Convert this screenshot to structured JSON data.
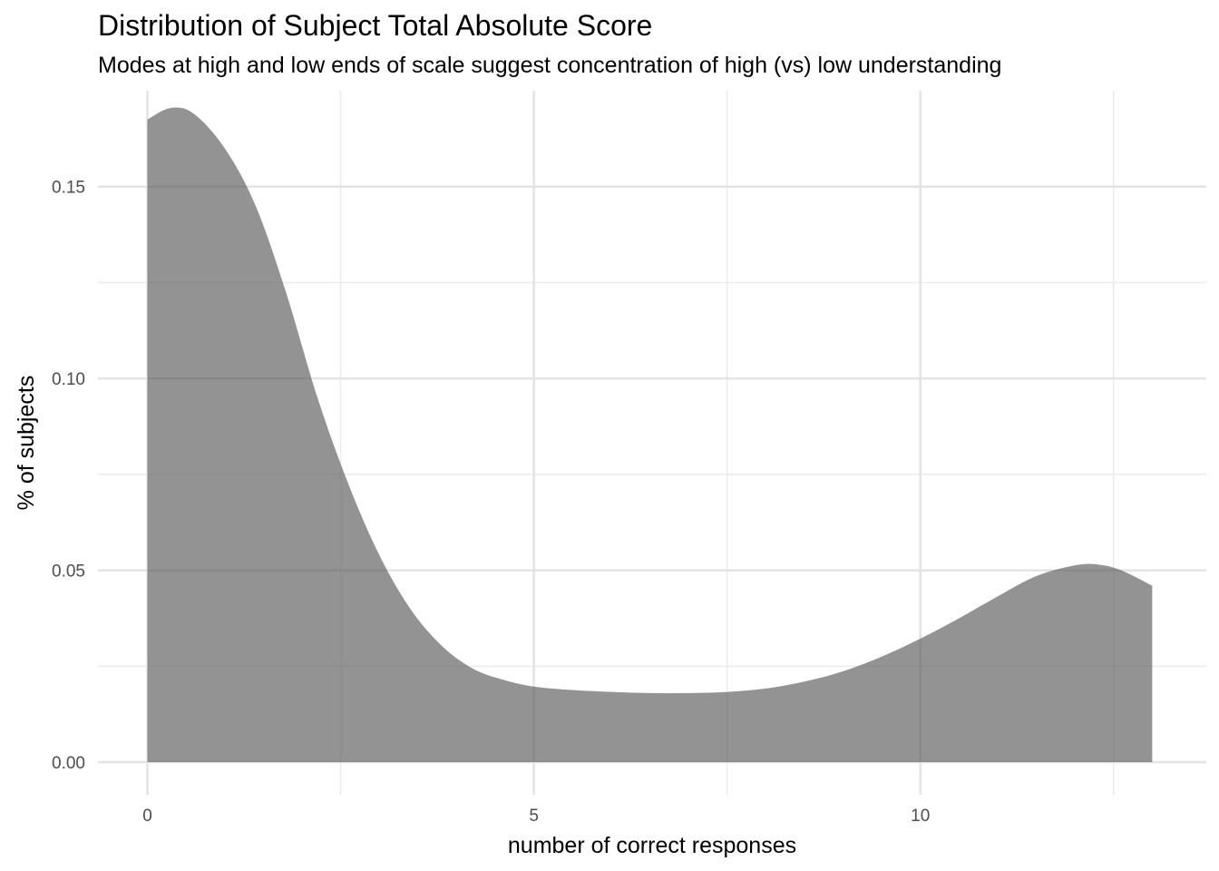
{
  "title": "Distribution of Subject Total Absolute Score",
  "subtitle": "Modes at high and low ends of scale suggest concentration of high (vs) low understanding",
  "chart_data": {
    "type": "area",
    "title": "Distribution of Subject Total Absolute Score",
    "subtitle": "Modes at high and low ends of scale suggest concentration of high (vs) low understanding",
    "xlabel": "number of correct responses",
    "ylabel": "% of subjects",
    "xlim": [
      -0.64,
      13.7
    ],
    "ylim": [
      -0.0085,
      0.175
    ],
    "x_ticks": [
      0,
      5,
      10
    ],
    "x_tick_labels": [
      "0",
      "5",
      "10"
    ],
    "y_ticks": [
      0.0,
      0.05,
      0.1,
      0.15
    ],
    "y_tick_labels": [
      "0.00",
      "0.05",
      "0.10",
      "0.15"
    ],
    "grid": true,
    "fill_color": "#939393",
    "series": [
      {
        "x": [
          0,
          0.3,
          0.6,
          1.0,
          1.4,
          1.8,
          2.2,
          2.6,
          3.0,
          3.4,
          3.8,
          4.2,
          4.6,
          5.0,
          5.5,
          6.0,
          6.5,
          7.0,
          7.5,
          8.0,
          8.5,
          9.0,
          9.5,
          10.0,
          10.5,
          11.0,
          11.5,
          12.0,
          12.3,
          12.6,
          13.0
        ],
        "y": [
          0.1675,
          0.1705,
          0.169,
          0.16,
          0.145,
          0.122,
          0.095,
          0.0725,
          0.054,
          0.04,
          0.0305,
          0.0245,
          0.0215,
          0.0197,
          0.0188,
          0.0183,
          0.018,
          0.018,
          0.0183,
          0.0192,
          0.021,
          0.0237,
          0.0275,
          0.0322,
          0.0375,
          0.0432,
          0.0485,
          0.0513,
          0.0515,
          0.05,
          0.046
        ]
      }
    ]
  }
}
